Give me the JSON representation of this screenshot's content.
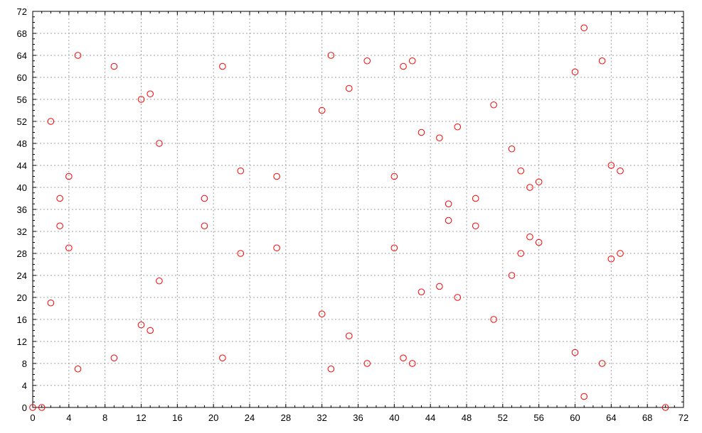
{
  "chart_data": {
    "type": "scatter",
    "title": "",
    "xlabel": "",
    "ylabel": "",
    "xlim": [
      0,
      72
    ],
    "ylim": [
      0,
      72
    ],
    "xticks": [
      0,
      4,
      8,
      12,
      16,
      20,
      24,
      28,
      32,
      36,
      40,
      44,
      48,
      52,
      56,
      60,
      64,
      68,
      72
    ],
    "yticks": [
      0,
      4,
      8,
      12,
      16,
      20,
      24,
      28,
      32,
      36,
      40,
      44,
      48,
      52,
      56,
      60,
      64,
      68,
      72
    ],
    "grid": true,
    "marker": "open-circle",
    "color": "#ff0000",
    "series": [
      {
        "points": [
          [
            0,
            0
          ],
          [
            1,
            0
          ],
          [
            70,
            0
          ],
          [
            61,
            69
          ],
          [
            5,
            64
          ],
          [
            33,
            64
          ],
          [
            37,
            63
          ],
          [
            42,
            63
          ],
          [
            63,
            63
          ],
          [
            9,
            62
          ],
          [
            21,
            62
          ],
          [
            41,
            62
          ],
          [
            60,
            61
          ],
          [
            35,
            58
          ],
          [
            13,
            57
          ],
          [
            12,
            56
          ],
          [
            51,
            55
          ],
          [
            32,
            54
          ],
          [
            2,
            52
          ],
          [
            47,
            51
          ],
          [
            43,
            50
          ],
          [
            45,
            49
          ],
          [
            14,
            48
          ],
          [
            53,
            47
          ],
          [
            64,
            44
          ],
          [
            23,
            43
          ],
          [
            54,
            43
          ],
          [
            65,
            43
          ],
          [
            4,
            42
          ],
          [
            27,
            42
          ],
          [
            40,
            42
          ],
          [
            56,
            41
          ],
          [
            55,
            40
          ],
          [
            3,
            38
          ],
          [
            19,
            38
          ],
          [
            49,
            38
          ],
          [
            46,
            37
          ],
          [
            46,
            34
          ],
          [
            3,
            33
          ],
          [
            19,
            33
          ],
          [
            49,
            33
          ],
          [
            55,
            31
          ],
          [
            56,
            30
          ],
          [
            4,
            29
          ],
          [
            27,
            29
          ],
          [
            40,
            29
          ],
          [
            23,
            28
          ],
          [
            54,
            28
          ],
          [
            65,
            28
          ],
          [
            64,
            27
          ],
          [
            53,
            24
          ],
          [
            14,
            23
          ],
          [
            45,
            22
          ],
          [
            43,
            21
          ],
          [
            47,
            20
          ],
          [
            2,
            19
          ],
          [
            32,
            17
          ],
          [
            51,
            16
          ],
          [
            12,
            15
          ],
          [
            13,
            14
          ],
          [
            35,
            13
          ],
          [
            60,
            10
          ],
          [
            9,
            9
          ],
          [
            21,
            9
          ],
          [
            41,
            9
          ],
          [
            37,
            8
          ],
          [
            42,
            8
          ],
          [
            63,
            8
          ],
          [
            5,
            7
          ],
          [
            33,
            7
          ],
          [
            61,
            2
          ]
        ]
      }
    ]
  }
}
